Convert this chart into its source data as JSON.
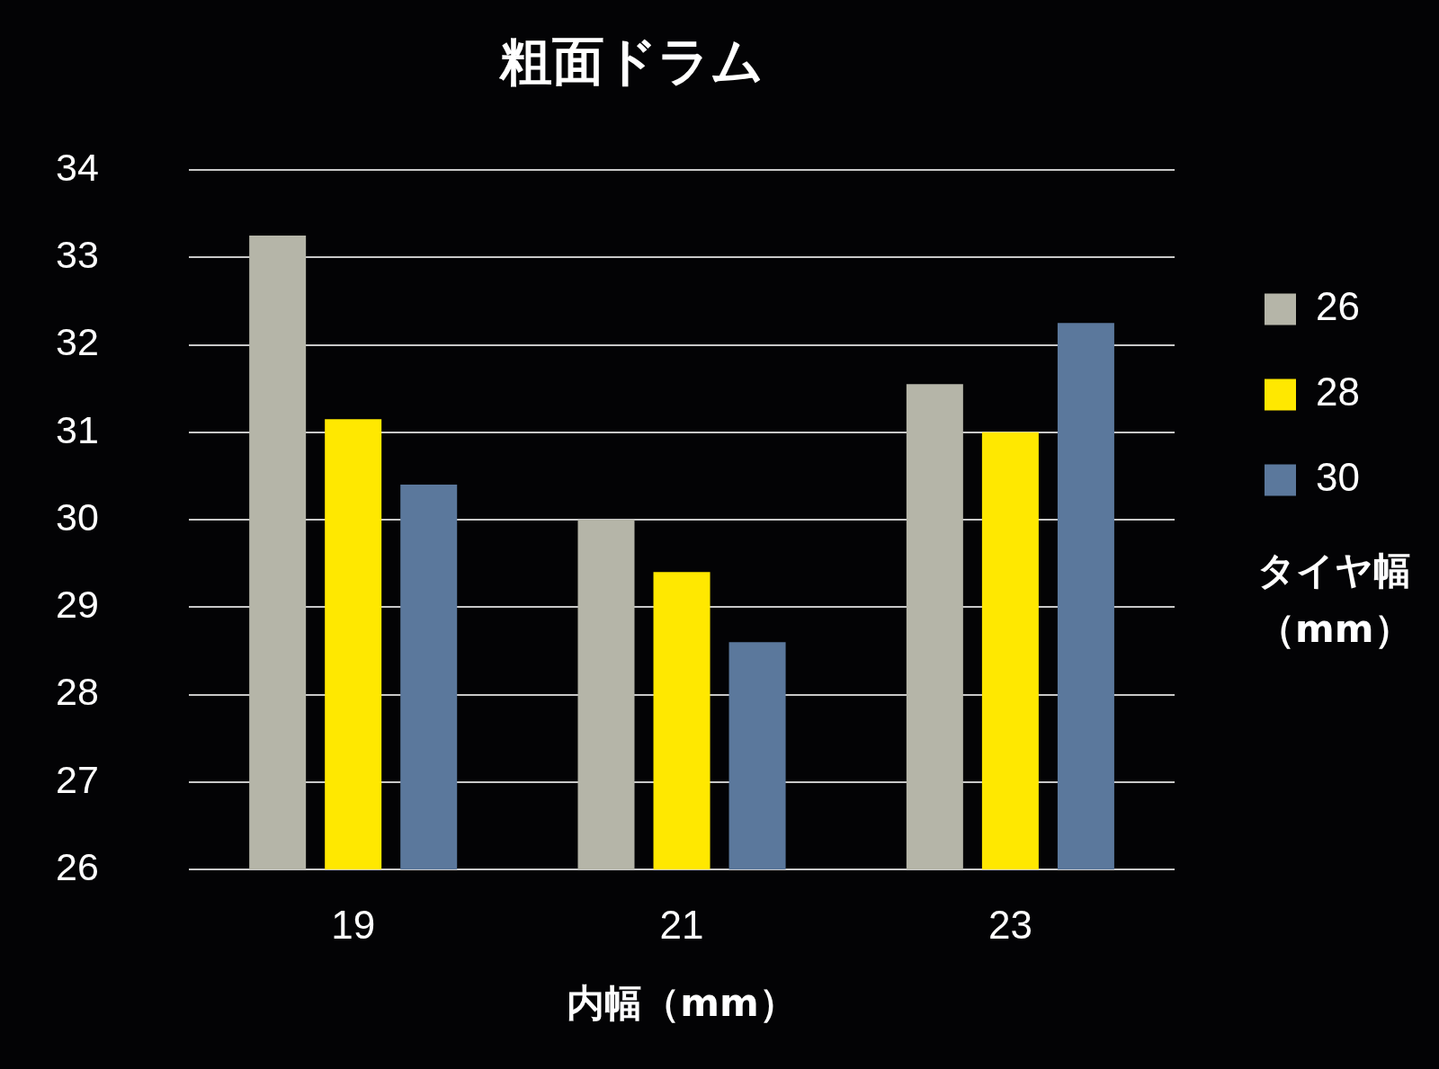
{
  "chart_data": {
    "type": "bar",
    "title": "粗面ドラム",
    "xlabel": "内幅（mm）",
    "legend_title": "タイヤ幅（mm）",
    "categories": [
      "19",
      "21",
      "23"
    ],
    "series": [
      {
        "name": "26",
        "color": "#b5b5a8",
        "values": [
          33.25,
          30,
          31.55
        ]
      },
      {
        "name": "28",
        "color": "#ffe800",
        "values": [
          31.15,
          29.4,
          31
        ]
      },
      {
        "name": "30",
        "color": "#5b789c",
        "values": [
          30.4,
          28.6,
          32.25
        ]
      }
    ],
    "ylim": [
      26,
      34
    ],
    "yticks": [
      26,
      27,
      28,
      29,
      30,
      31,
      32,
      33,
      34
    ],
    "grid": "y",
    "legend": "right"
  }
}
